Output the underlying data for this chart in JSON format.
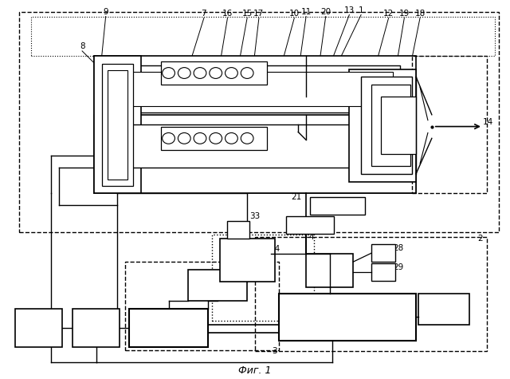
{
  "title": "Фиг. 1",
  "bg_color": "#ffffff",
  "fig_width": 6.4,
  "fig_height": 4.75
}
